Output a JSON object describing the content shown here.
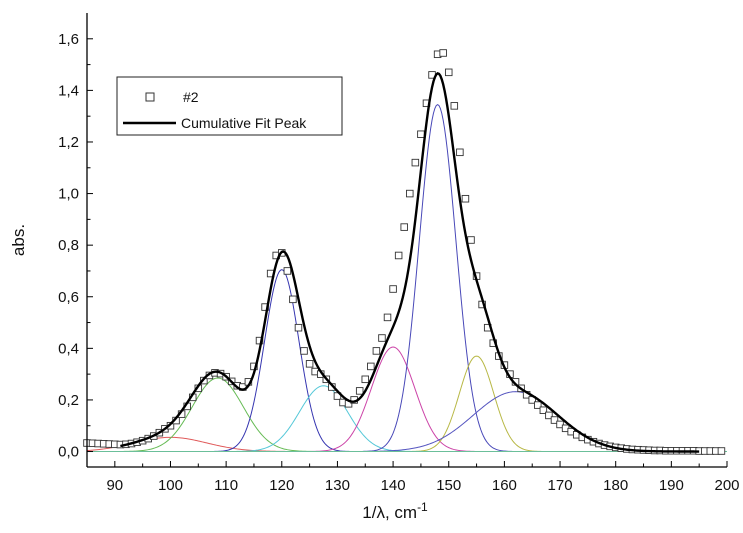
{
  "chart_data": {
    "type": "line",
    "xlabel": "1/λ, cm",
    "xlabel_sup": "-1",
    "ylabel": "abs.",
    "xlim": [
      85,
      200
    ],
    "ylim": [
      -0.06,
      1.7
    ],
    "x_ticks": [
      90,
      100,
      110,
      120,
      130,
      140,
      150,
      160,
      170,
      180,
      190,
      200
    ],
    "x_tick_labels": [
      "90",
      "100",
      "110",
      "120",
      "130",
      "140",
      "150",
      "160",
      "170",
      "180",
      "190",
      "200"
    ],
    "y_ticks": [
      0.0,
      0.2,
      0.4,
      0.6,
      0.8,
      1.0,
      1.2,
      1.4,
      1.6
    ],
    "y_tick_labels": [
      "0,0",
      "0,2",
      "0,4",
      "0,6",
      "0,8",
      "1,0",
      "1,2",
      "1,4",
      "1,6"
    ],
    "grid": false,
    "legend": {
      "position": "top-left",
      "entries": [
        {
          "label": "#2",
          "marker": "open-square"
        },
        {
          "label": "Cumulative Fit Peak",
          "marker": "line"
        }
      ]
    },
    "peaks": [
      {
        "color": "#e05a5a",
        "center": 100.0,
        "height": 0.055,
        "width": 6.5
      },
      {
        "color": "#66bb55",
        "center": 108.5,
        "height": 0.285,
        "width": 4.6
      },
      {
        "color": "#3535b0",
        "center": 120.0,
        "height": 0.705,
        "width": 3.1
      },
      {
        "color": "#55c8d8",
        "center": 127.5,
        "height": 0.255,
        "width": 4.3
      },
      {
        "color": "#cc44a8",
        "center": 140.0,
        "height": 0.405,
        "width": 3.9
      },
      {
        "color": "#4848b8",
        "center": 148.0,
        "height": 1.345,
        "width": 3.3
      },
      {
        "color": "#b8b845",
        "center": 155.0,
        "height": 0.37,
        "width": 3.1
      },
      {
        "color": "#5555c0",
        "center": 162.0,
        "height": 0.232,
        "width": 7.6
      }
    ],
    "series": [
      {
        "name": "#2",
        "marker": "open-square",
        "x": [
          85,
          86,
          87,
          88,
          89,
          90,
          91,
          92,
          93,
          94,
          95,
          96,
          97,
          98,
          99,
          100,
          101,
          102,
          103,
          104,
          105,
          106,
          107,
          108,
          109,
          110,
          111,
          112,
          113,
          114,
          115,
          116,
          117,
          118,
          119,
          120,
          121,
          122,
          123,
          124,
          125,
          126,
          127,
          128,
          129,
          130,
          131,
          132,
          133,
          134,
          135,
          136,
          137,
          138,
          139,
          140,
          141,
          142,
          143,
          144,
          145,
          146,
          147,
          148,
          149,
          150,
          151,
          152,
          153,
          154,
          155,
          156,
          157,
          158,
          159,
          160,
          161,
          162,
          163,
          164,
          165,
          166,
          167,
          168,
          169,
          170,
          171,
          172,
          173,
          174,
          175,
          176,
          177,
          178,
          179,
          180,
          181,
          182,
          183,
          184,
          185,
          186,
          187,
          188,
          189,
          190,
          191,
          192,
          193,
          194,
          195,
          196,
          197,
          198,
          199
        ],
        "y": [
          0.033,
          0.032,
          0.031,
          0.03,
          0.029,
          0.028,
          0.027,
          0.028,
          0.031,
          0.036,
          0.042,
          0.05,
          0.06,
          0.073,
          0.088,
          0.1,
          0.12,
          0.145,
          0.175,
          0.21,
          0.245,
          0.275,
          0.295,
          0.305,
          0.302,
          0.29,
          0.272,
          0.255,
          0.25,
          0.27,
          0.33,
          0.43,
          0.56,
          0.69,
          0.76,
          0.77,
          0.7,
          0.59,
          0.48,
          0.39,
          0.34,
          0.31,
          0.3,
          0.28,
          0.25,
          0.215,
          0.19,
          0.185,
          0.2,
          0.235,
          0.28,
          0.33,
          0.39,
          0.44,
          0.52,
          0.63,
          0.76,
          0.87,
          1.0,
          1.12,
          1.23,
          1.35,
          1.46,
          1.54,
          1.545,
          1.47,
          1.34,
          1.16,
          0.98,
          0.82,
          0.68,
          0.57,
          0.48,
          0.42,
          0.37,
          0.335,
          0.3,
          0.27,
          0.245,
          0.22,
          0.2,
          0.18,
          0.16,
          0.14,
          0.122,
          0.105,
          0.09,
          0.077,
          0.065,
          0.055,
          0.046,
          0.038,
          0.031,
          0.025,
          0.02,
          0.016,
          0.013,
          0.01,
          0.008,
          0.007,
          0.006,
          0.005,
          0.004,
          0.004,
          0.003,
          0.003,
          0.003,
          0.003,
          0.003,
          0.003,
          0.002,
          0.002,
          0.002,
          0.002,
          0.002
        ]
      },
      {
        "name": "Cumulative Fit Peak",
        "marker": "line",
        "color": "#000000",
        "x_range": [
          91,
          195
        ]
      }
    ]
  }
}
